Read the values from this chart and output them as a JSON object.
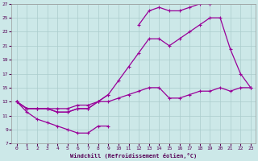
{
  "xlabel": "Windchill (Refroidissement éolien,°C)",
  "background_color": "#cce8e8",
  "grid_color": "#aacccc",
  "line_color": "#990099",
  "xlim": [
    -0.5,
    23.5
  ],
  "ylim": [
    7,
    27
  ],
  "xticks": [
    0,
    1,
    2,
    3,
    4,
    5,
    6,
    7,
    8,
    9,
    10,
    11,
    12,
    13,
    14,
    15,
    16,
    17,
    18,
    19,
    20,
    21,
    22,
    23
  ],
  "yticks": [
    7,
    9,
    11,
    13,
    15,
    17,
    19,
    21,
    23,
    25,
    27
  ],
  "line1_x": [
    0,
    1,
    2,
    3,
    4,
    5,
    6,
    7,
    8,
    9
  ],
  "line1_y": [
    13,
    11.5,
    10.5,
    10,
    9.5,
    9,
    8.5,
    8.5,
    9.5,
    9.5
  ],
  "line2_x": [
    0,
    1,
    2,
    3,
    4,
    5,
    6,
    7,
    8,
    9,
    10,
    11,
    12,
    13,
    14,
    15,
    16,
    17,
    18,
    19,
    20,
    21,
    22,
    23
  ],
  "line2_y": [
    13,
    12,
    12,
    12,
    12,
    12,
    12.5,
    12.5,
    13,
    13,
    13.5,
    14,
    14.5,
    15,
    15,
    13.5,
    13.5,
    14,
    14.5,
    14.5,
    15,
    14.5,
    15,
    15
  ],
  "line3_x": [
    0,
    1,
    2,
    3,
    4,
    5,
    6,
    7,
    8,
    9,
    10,
    11,
    12,
    13,
    14,
    15,
    16,
    17,
    18,
    19,
    20,
    21,
    22,
    23
  ],
  "line3_y": [
    13,
    12,
    12,
    12,
    11.5,
    11.5,
    12,
    12,
    13,
    14,
    16,
    18,
    20,
    22,
    22,
    21,
    22,
    23,
    24,
    25,
    25,
    20.5,
    17,
    15
  ],
  "line4a_x": [
    0,
    1,
    2,
    3,
    4,
    5,
    6,
    7,
    8,
    9
  ],
  "line4a_y": [
    13,
    12,
    12,
    12,
    11.5,
    11.5,
    12,
    12,
    13,
    14
  ],
  "line4b_x": [
    12,
    13,
    14,
    15,
    16,
    17,
    18,
    19
  ],
  "line4b_y": [
    24,
    26,
    26.5,
    26,
    26,
    26.5,
    27,
    27
  ]
}
